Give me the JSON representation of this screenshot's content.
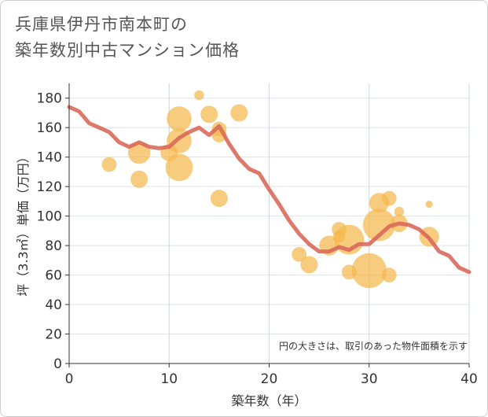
{
  "title": {
    "line1": "兵庫県伊丹市南本町の",
    "line2": "築年数別中古マンション価格"
  },
  "chart_data": {
    "type": "scatter",
    "xlabel": "築年数（年）",
    "ylabel": "坪（3.3㎡）単価（万円）",
    "xlim": [
      0,
      40
    ],
    "ylim": [
      0,
      190
    ],
    "xticks": [
      0,
      10,
      20,
      30,
      40
    ],
    "yticks": [
      0,
      20,
      40,
      60,
      80,
      100,
      120,
      140,
      160,
      180
    ],
    "grid": true,
    "note": "円の大きさは、取引のあった物件面積を示す",
    "colors": {
      "bubble": "#f5b94d",
      "line": "#d9695a"
    },
    "bubbles": [
      {
        "x": 4,
        "y": 135,
        "size": 0.4
      },
      {
        "x": 7,
        "y": 143,
        "size": 0.7
      },
      {
        "x": 7,
        "y": 125,
        "size": 0.5
      },
      {
        "x": 10,
        "y": 143,
        "size": 0.5
      },
      {
        "x": 11,
        "y": 166,
        "size": 0.8
      },
      {
        "x": 11,
        "y": 151,
        "size": 0.8
      },
      {
        "x": 11,
        "y": 133,
        "size": 0.9
      },
      {
        "x": 13,
        "y": 182,
        "size": 0.2
      },
      {
        "x": 14,
        "y": 169,
        "size": 0.5
      },
      {
        "x": 15,
        "y": 159,
        "size": 0.4
      },
      {
        "x": 15,
        "y": 155,
        "size": 0.4
      },
      {
        "x": 15,
        "y": 112,
        "size": 0.5
      },
      {
        "x": 17,
        "y": 170,
        "size": 0.5
      },
      {
        "x": 23,
        "y": 74,
        "size": 0.4
      },
      {
        "x": 24,
        "y": 67,
        "size": 0.5
      },
      {
        "x": 26,
        "y": 80,
        "size": 0.6
      },
      {
        "x": 27,
        "y": 91,
        "size": 0.4
      },
      {
        "x": 27,
        "y": 86,
        "size": 0.3
      },
      {
        "x": 28,
        "y": 84,
        "size": 1.0
      },
      {
        "x": 28,
        "y": 62,
        "size": 0.4
      },
      {
        "x": 30,
        "y": 63,
        "size": 1.2
      },
      {
        "x": 31,
        "y": 109,
        "size": 0.6
      },
      {
        "x": 31,
        "y": 94,
        "size": 1.1
      },
      {
        "x": 32,
        "y": 112,
        "size": 0.4
      },
      {
        "x": 32,
        "y": 60,
        "size": 0.4
      },
      {
        "x": 33,
        "y": 103,
        "size": 0.2
      },
      {
        "x": 33,
        "y": 95,
        "size": 0.5
      },
      {
        "x": 36,
        "y": 108,
        "size": 0.1
      },
      {
        "x": 36,
        "y": 86,
        "size": 0.6
      }
    ],
    "trend": {
      "x": [
        0,
        1,
        2,
        3,
        4,
        5,
        6,
        7,
        8,
        9,
        10,
        11,
        12,
        13,
        14,
        15,
        16,
        17,
        18,
        19,
        20,
        21,
        22,
        23,
        24,
        25,
        26,
        27,
        28,
        29,
        30,
        31,
        32,
        33,
        34,
        35,
        36,
        37,
        38,
        39,
        40
      ],
      "y": [
        174,
        171,
        163,
        160,
        157,
        150,
        147,
        150,
        147,
        146,
        147,
        153,
        157,
        160,
        155,
        161,
        149,
        139,
        132,
        129,
        118,
        108,
        97,
        88,
        81,
        76,
        76,
        79,
        77,
        81,
        81,
        87,
        93,
        95,
        94,
        91,
        85,
        76,
        73,
        65,
        62
      ]
    }
  }
}
